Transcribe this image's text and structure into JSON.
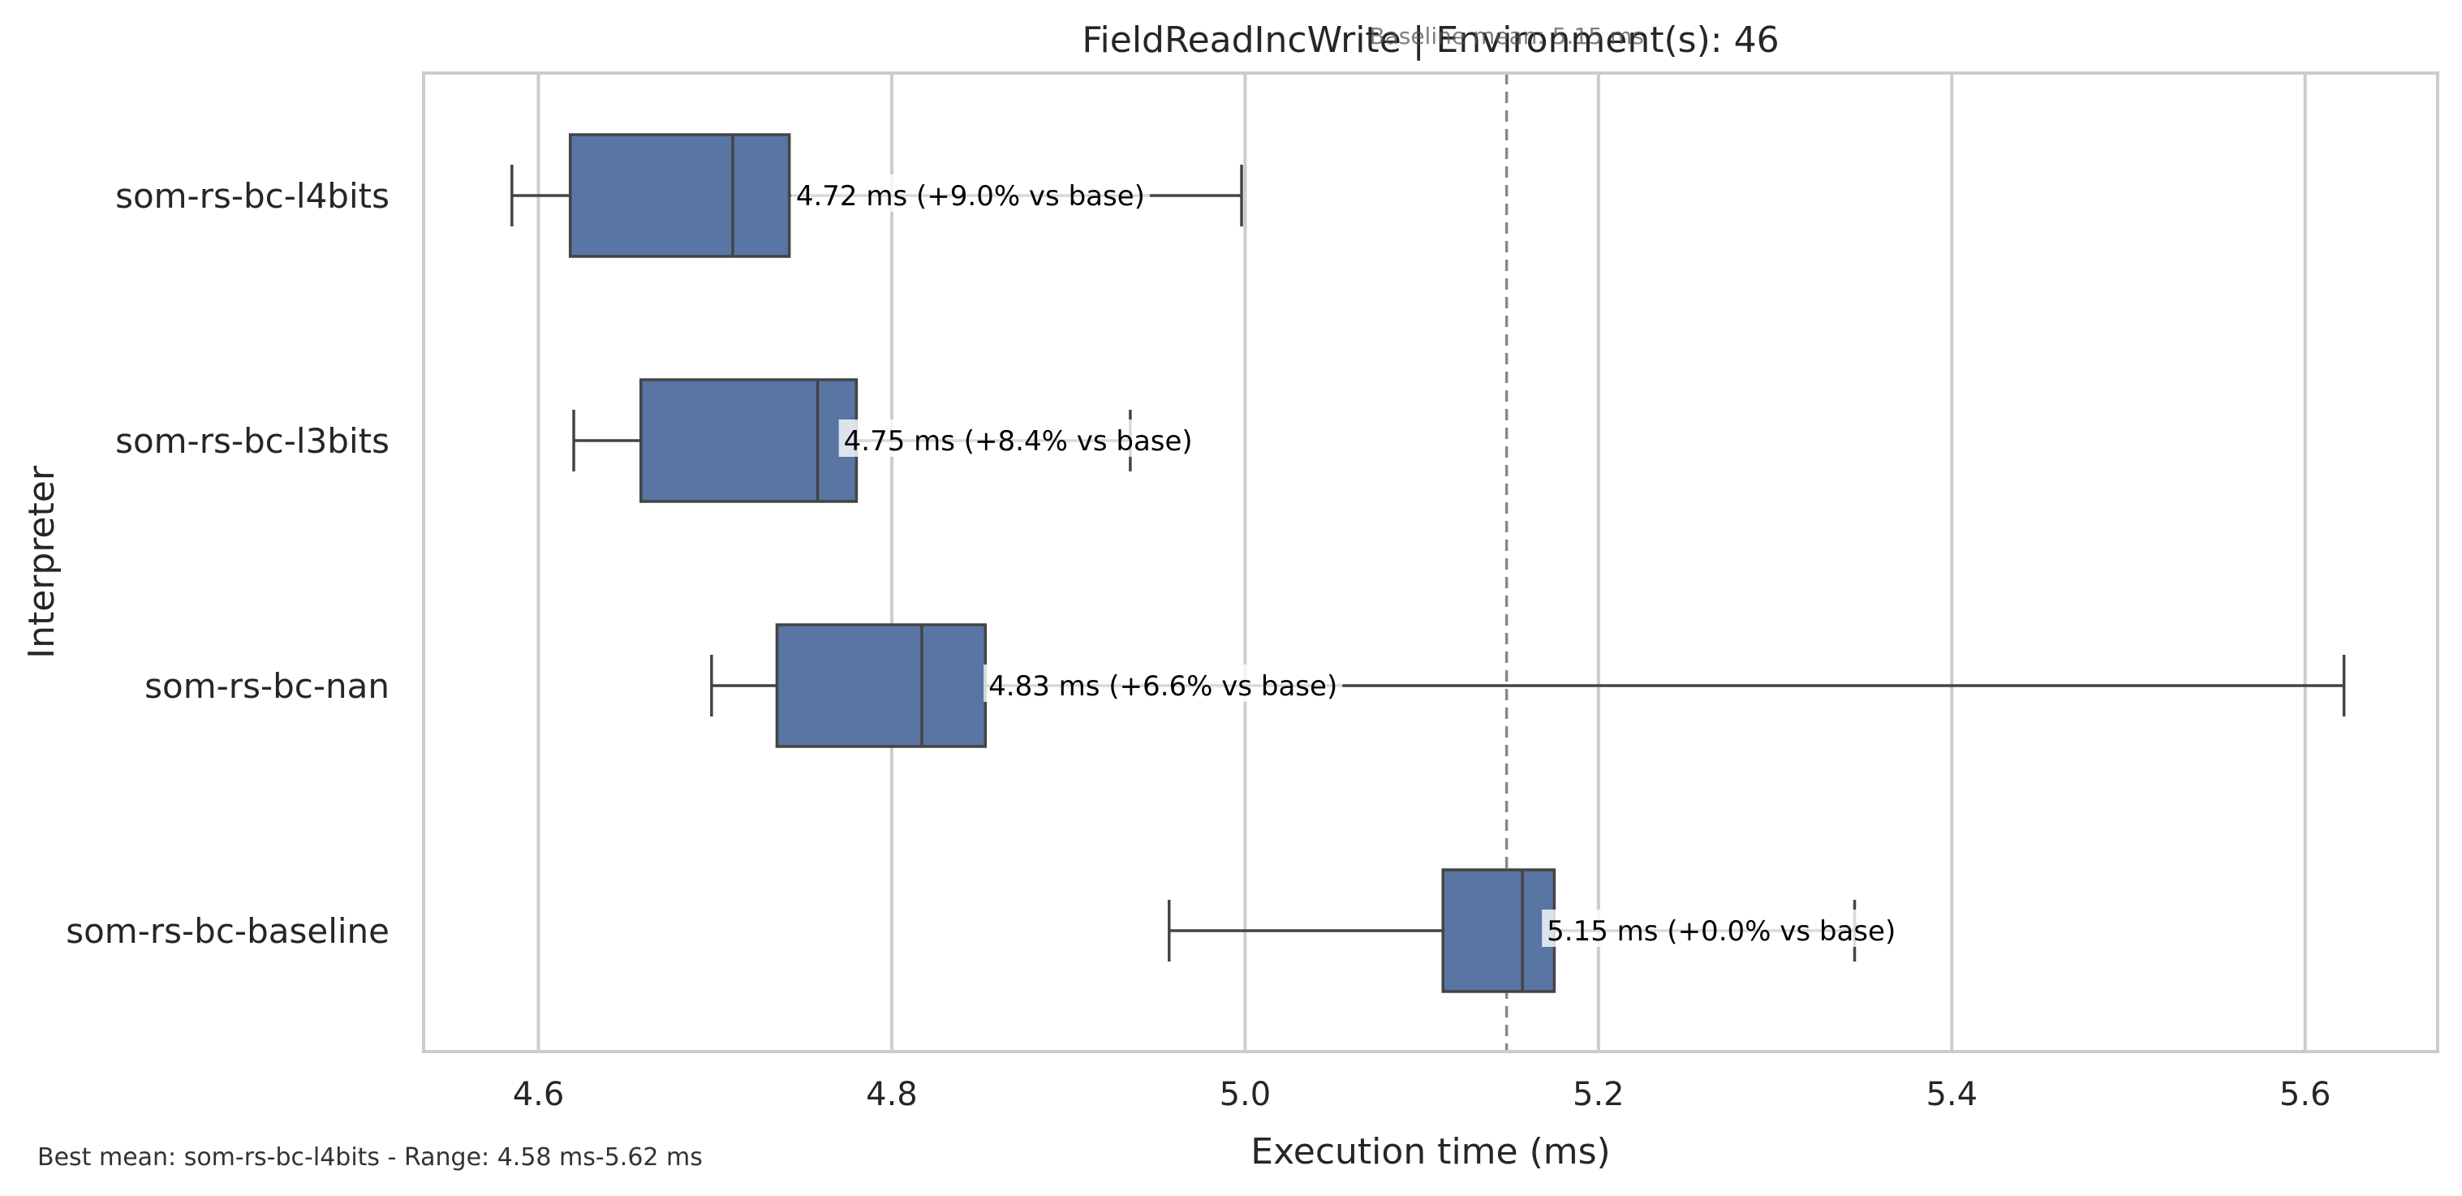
{
  "chart_data": {
    "type": "box",
    "title": "FieldReadIncWrite | Environment(s): 46",
    "xlabel": "Execution time (ms)",
    "ylabel": "Interpreter",
    "xlim": [
      4.535,
      5.675
    ],
    "x_ticks": [
      "4.6",
      "4.8",
      "5.0",
      "5.2",
      "5.4",
      "5.6"
    ],
    "x_tick_values": [
      4.6,
      4.8,
      5.0,
      5.2,
      5.4,
      5.6
    ],
    "grid": "vertical",
    "box_color": "#5875a4",
    "line_color": "#444444",
    "baseline": {
      "value": 5.148,
      "label": "Baseline mean: 5.15 ms"
    },
    "categories": [
      "som-rs-bc-l4bits",
      "som-rs-bc-l3bits",
      "som-rs-bc-nan",
      "som-rs-bc-baseline"
    ],
    "series": [
      {
        "category": "som-rs-bc-l4bits",
        "whisker_low": 4.585,
        "q1": 4.618,
        "median": 4.71,
        "q3": 4.742,
        "whisker_high": 4.998,
        "label": "4.72 ms  (+9.0% vs base)",
        "label_x": 4.743
      },
      {
        "category": "som-rs-bc-l3bits",
        "whisker_low": 4.62,
        "q1": 4.658,
        "median": 4.758,
        "q3": 4.78,
        "whisker_high": 4.935,
        "label": "4.75 ms  (+8.4% vs base)",
        "label_x": 4.77
      },
      {
        "category": "som-rs-bc-nan",
        "whisker_low": 4.698,
        "q1": 4.735,
        "median": 4.817,
        "q3": 4.853,
        "whisker_high": 5.622,
        "label": "4.83 ms  (+6.6% vs base)",
        "label_x": 4.852
      },
      {
        "category": "som-rs-bc-baseline",
        "whisker_low": 4.957,
        "q1": 5.112,
        "median": 5.157,
        "q3": 5.175,
        "whisker_high": 5.345,
        "label": "5.15 ms  (+0.0% vs base)",
        "label_x": 5.168
      }
    ],
    "footnote": "Best mean: som-rs-bc-l4bits - Range: 4.58 ms-5.62 ms"
  }
}
